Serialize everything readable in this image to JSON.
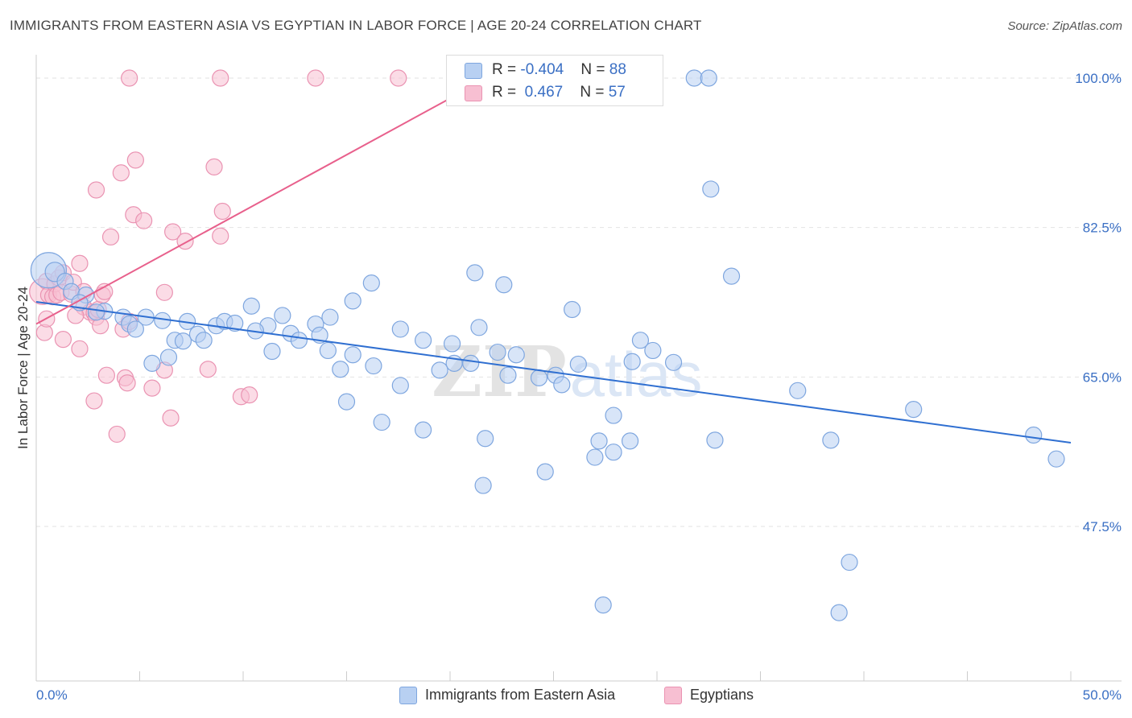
{
  "title": "IMMIGRANTS FROM EASTERN ASIA VS EGYPTIAN IN LABOR FORCE | AGE 20-24 CORRELATION CHART",
  "source": "Source: ZipAtlas.com",
  "watermark": {
    "part1": "ZIP",
    "part2": "atlas"
  },
  "legend": {
    "rows": [
      {
        "r_label": "R = ",
        "r_value": "-0.404",
        "n_label": "N = ",
        "n_value": "88"
      },
      {
        "r_label": "R = ",
        "r_value": " 0.467",
        "n_label": "N = ",
        "n_value": "57"
      }
    ]
  },
  "bottom_legend": [
    "Immigrants from Eastern Asia",
    "Egyptians"
  ],
  "colors": {
    "blue_fill": "#b8d0f2",
    "blue_stroke": "#7ea6df",
    "blue_line": "#2f6fd1",
    "pink_fill": "#f7bfd2",
    "pink_stroke": "#ea93b2",
    "pink_line": "#e8608c",
    "axis_text": "#3a6fc4",
    "grid": "#e2e2e2"
  },
  "chart_data": {
    "type": "scatter",
    "title": "IMMIGRANTS FROM EASTERN ASIA VS EGYPTIAN IN LABOR FORCE | AGE 20-24 CORRELATION CHART",
    "xlabel": "",
    "ylabel": "In Labor Force | Age 20-24",
    "xlim": [
      0,
      50
    ],
    "ylim": [
      32,
      102
    ],
    "x_tick_labels": [
      "0.0%",
      "50.0%"
    ],
    "y_ticks": [
      47.5,
      65.0,
      82.5,
      100.0
    ],
    "y_tick_labels": [
      "47.5%",
      "65.0%",
      "82.5%",
      "100.0%"
    ],
    "grid": true,
    "legend_position": "top-center",
    "series": [
      {
        "name": "Immigrants from Eastern Asia",
        "r": -0.404,
        "n": 88,
        "trend": {
          "x": [
            0,
            50
          ],
          "y": [
            73.8,
            57.3
          ]
        },
        "points": [
          [
            0.6,
            77.5,
            22
          ],
          [
            0.9,
            77.3,
            12
          ],
          [
            1.4,
            76.2,
            10
          ],
          [
            1.7,
            75.0,
            10
          ],
          [
            2.4,
            74.6,
            10
          ],
          [
            2.1,
            73.7,
            10
          ],
          [
            3.3,
            72.7,
            10
          ],
          [
            2.9,
            72.6,
            10
          ],
          [
            4.2,
            72.0,
            10
          ],
          [
            5.3,
            72.0,
            10
          ],
          [
            4.5,
            71.2,
            10
          ],
          [
            6.1,
            71.6,
            10
          ],
          [
            7.3,
            71.5,
            10
          ],
          [
            8.7,
            71.0,
            10
          ],
          [
            9.1,
            71.5,
            10
          ],
          [
            9.6,
            71.3,
            10
          ],
          [
            11.2,
            71.0,
            10
          ],
          [
            11.9,
            72.2,
            10
          ],
          [
            13.5,
            71.2,
            10
          ],
          [
            14.2,
            72.0,
            10
          ],
          [
            4.8,
            70.6,
            10
          ],
          [
            10.6,
            70.4,
            10
          ],
          [
            12.3,
            70.1,
            10
          ],
          [
            13.7,
            69.9,
            10
          ],
          [
            7.8,
            70.0,
            10
          ],
          [
            6.7,
            69.3,
            10
          ],
          [
            7.1,
            69.2,
            10
          ],
          [
            8.1,
            69.3,
            10
          ],
          [
            12.7,
            69.3,
            10
          ],
          [
            17.6,
            70.6,
            10
          ],
          [
            18.7,
            69.3,
            10
          ],
          [
            20.1,
            68.9,
            10
          ],
          [
            21.4,
            70.8,
            10
          ],
          [
            10.4,
            73.3,
            10
          ],
          [
            15.3,
            73.9,
            10
          ],
          [
            16.2,
            76.0,
            10
          ],
          [
            21.2,
            77.2,
            10
          ],
          [
            22.6,
            75.8,
            10
          ],
          [
            25.9,
            72.9,
            10
          ],
          [
            33.6,
            76.8,
            10
          ],
          [
            32.6,
            87.0,
            10
          ],
          [
            31.8,
            100.0,
            10
          ],
          [
            32.5,
            100.0,
            10
          ],
          [
            11.4,
            68.0,
            10
          ],
          [
            14.1,
            68.1,
            10
          ],
          [
            15.3,
            67.6,
            10
          ],
          [
            22.3,
            67.9,
            10
          ],
          [
            23.2,
            67.6,
            10
          ],
          [
            29.2,
            69.3,
            10
          ],
          [
            29.8,
            68.1,
            10
          ],
          [
            6.4,
            67.3,
            10
          ],
          [
            5.6,
            66.6,
            10
          ],
          [
            16.3,
            66.3,
            10
          ],
          [
            20.2,
            66.6,
            10
          ],
          [
            21.0,
            66.6,
            10
          ],
          [
            25.1,
            65.2,
            10
          ],
          [
            26.2,
            66.5,
            10
          ],
          [
            28.8,
            66.8,
            10
          ],
          [
            30.8,
            66.7,
            10
          ],
          [
            14.7,
            65.9,
            10
          ],
          [
            19.5,
            65.8,
            10
          ],
          [
            22.8,
            65.2,
            10
          ],
          [
            24.3,
            64.9,
            10
          ],
          [
            25.4,
            64.1,
            10
          ],
          [
            17.6,
            64.0,
            10
          ],
          [
            36.8,
            63.4,
            10
          ],
          [
            15.0,
            62.1,
            10
          ],
          [
            42.4,
            61.2,
            10
          ],
          [
            16.7,
            59.7,
            10
          ],
          [
            18.7,
            58.8,
            10
          ],
          [
            27.9,
            60.5,
            10
          ],
          [
            21.7,
            57.8,
            10
          ],
          [
            27.2,
            57.5,
            10
          ],
          [
            28.7,
            57.5,
            10
          ],
          [
            32.8,
            57.6,
            10
          ],
          [
            38.4,
            57.6,
            10
          ],
          [
            48.2,
            58.2,
            10
          ],
          [
            27.0,
            55.6,
            10
          ],
          [
            27.9,
            56.2,
            10
          ],
          [
            49.3,
            55.4,
            10
          ],
          [
            24.6,
            53.9,
            10
          ],
          [
            21.6,
            52.3,
            10
          ],
          [
            39.3,
            43.3,
            10
          ],
          [
            27.4,
            38.3,
            10
          ],
          [
            38.8,
            37.4,
            10
          ]
        ]
      },
      {
        "name": "Egyptians",
        "r": 0.467,
        "n": 57,
        "trend": {
          "x": [
            0,
            21.8
          ],
          "y": [
            71.2,
            100.0
          ]
        },
        "points": [
          [
            0.3,
            75.0,
            16
          ],
          [
            0.4,
            70.2,
            10
          ],
          [
            0.5,
            76.2,
            10
          ],
          [
            0.6,
            74.6,
            10
          ],
          [
            0.8,
            74.4,
            10
          ],
          [
            0.5,
            71.8,
            10
          ],
          [
            0.9,
            75.9,
            10
          ],
          [
            1.0,
            74.6,
            10
          ],
          [
            1.1,
            76.6,
            10
          ],
          [
            1.2,
            74.9,
            10
          ],
          [
            1.3,
            77.2,
            10
          ],
          [
            1.7,
            74.7,
            10
          ],
          [
            1.8,
            76.1,
            10
          ],
          [
            2.1,
            78.3,
            10
          ],
          [
            2.3,
            75.0,
            10
          ],
          [
            2.3,
            73.2,
            10
          ],
          [
            2.6,
            72.6,
            10
          ],
          [
            2.8,
            72.5,
            10
          ],
          [
            2.9,
            72.0,
            10
          ],
          [
            3.0,
            72.9,
            10
          ],
          [
            3.2,
            74.6,
            10
          ],
          [
            3.3,
            75.0,
            10
          ],
          [
            1.9,
            72.2,
            10
          ],
          [
            3.1,
            71.0,
            10
          ],
          [
            1.3,
            69.4,
            10
          ],
          [
            2.1,
            68.3,
            10
          ],
          [
            4.2,
            70.6,
            10
          ],
          [
            4.5,
            71.5,
            10
          ],
          [
            6.2,
            74.9,
            10
          ],
          [
            3.4,
            65.2,
            10
          ],
          [
            4.3,
            64.9,
            10
          ],
          [
            4.4,
            64.3,
            10
          ],
          [
            5.6,
            63.7,
            10
          ],
          [
            6.2,
            65.8,
            10
          ],
          [
            8.3,
            65.9,
            10
          ],
          [
            9.9,
            62.7,
            10
          ],
          [
            10.3,
            62.9,
            10
          ],
          [
            2.8,
            62.2,
            10
          ],
          [
            3.9,
            58.3,
            10
          ],
          [
            6.5,
            60.2,
            10
          ],
          [
            2.9,
            86.9,
            10
          ],
          [
            4.1,
            88.9,
            10
          ],
          [
            4.8,
            90.4,
            10
          ],
          [
            8.6,
            89.6,
            10
          ],
          [
            4.7,
            84.0,
            10
          ],
          [
            5.2,
            83.3,
            10
          ],
          [
            9.0,
            84.4,
            10
          ],
          [
            3.6,
            81.4,
            10
          ],
          [
            6.6,
            82.0,
            10
          ],
          [
            7.2,
            80.9,
            10
          ],
          [
            8.9,
            81.5,
            10
          ],
          [
            4.5,
            100.0,
            10
          ],
          [
            8.9,
            100.0,
            10
          ],
          [
            13.5,
            100.0,
            10
          ],
          [
            17.5,
            100.0,
            10
          ]
        ]
      }
    ]
  }
}
